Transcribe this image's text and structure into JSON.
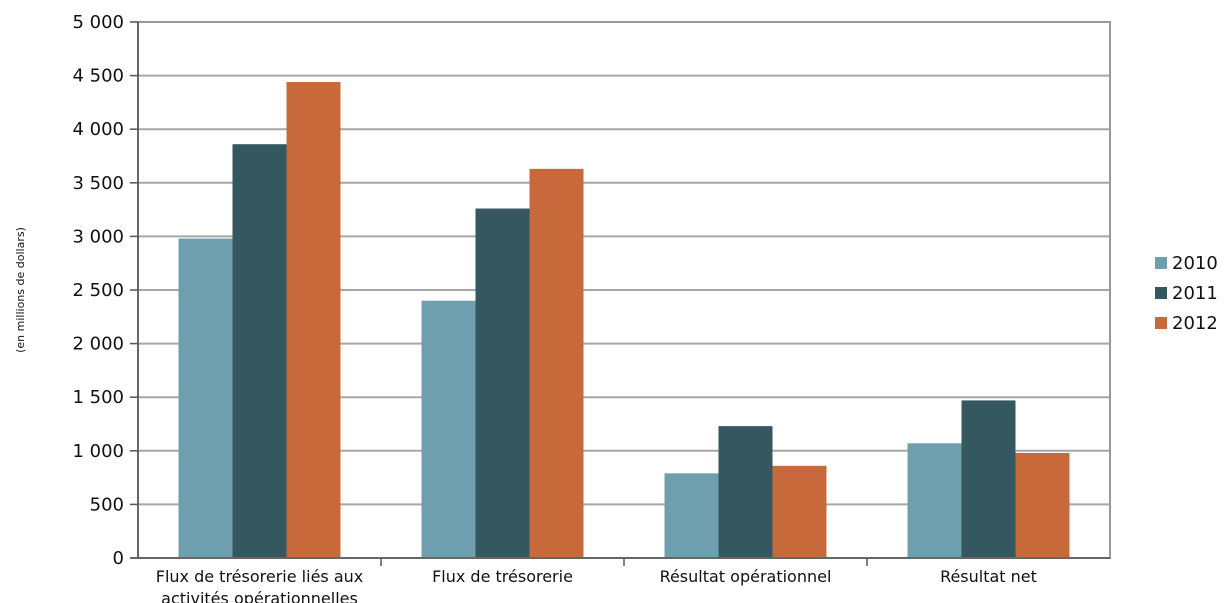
{
  "chart_data": {
    "type": "bar",
    "title": "",
    "xlabel": "",
    "ylabel": "(en millions de dollars)",
    "ylim": [
      0,
      5000
    ],
    "yticks": [
      0,
      500,
      1000,
      1500,
      2000,
      2500,
      3000,
      3500,
      4000,
      4500,
      5000
    ],
    "ytick_labels": [
      "0",
      "500",
      "1 000",
      "1 500",
      "2 000",
      "2 500",
      "3 000",
      "3 500",
      "4 000",
      "4 500",
      "5 000"
    ],
    "grid": true,
    "legend": "right",
    "categories": [
      [
        "Flux de trésorerie liés aux",
        "activités opérationnelles"
      ],
      [
        "Flux de trésorerie"
      ],
      [
        "Résultat opérationnel"
      ],
      [
        "Résultat net"
      ]
    ],
    "series": [
      {
        "name": "2010",
        "color": "#6f9fae",
        "values": [
          2980,
          2400,
          790,
          1070
        ]
      },
      {
        "name": "2011",
        "color": "#35575f",
        "values": [
          3860,
          3260,
          1230,
          1470
        ]
      },
      {
        "name": "2012",
        "color": "#c8693c",
        "values": [
          4440,
          3630,
          860,
          980
        ]
      }
    ]
  }
}
